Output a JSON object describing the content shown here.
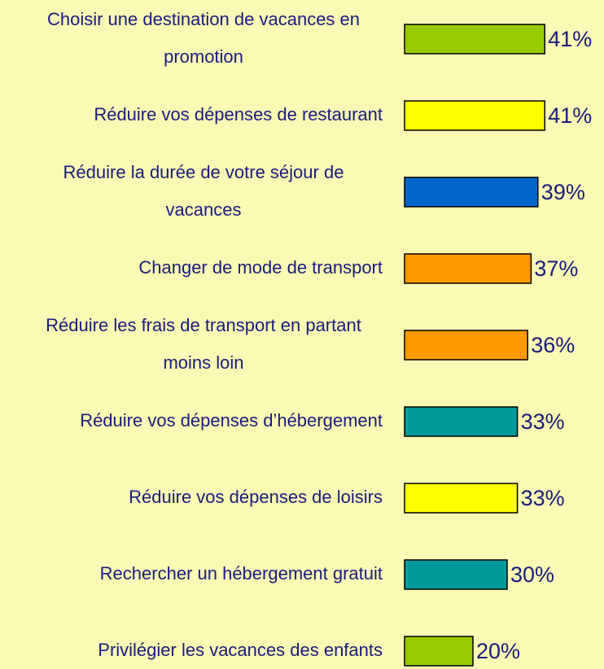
{
  "chart_data": {
    "type": "bar",
    "orientation": "horizontal",
    "categories": [
      "Choisir une destination de vacances en promotion",
      "Réduire vos dépenses de restaurant",
      "Réduire la durée de votre séjour de vacances",
      "Changer de mode de transport",
      "Réduire les frais de transport en partant moins loin",
      "Réduire vos dépenses d’hébergement",
      "Réduire vos dépenses de loisirs",
      "Rechercher un hébergement gratuit",
      "Privilégier les vacances des enfants"
    ],
    "values": [
      41,
      41,
      39,
      37,
      36,
      33,
      33,
      30,
      20
    ],
    "value_labels": [
      "41%",
      "41%",
      "39%",
      "37%",
      "36%",
      "33%",
      "33%",
      "30%",
      "20%"
    ],
    "colors": [
      "#99cc00",
      "#ffff00",
      "#0066cc",
      "#ff9900",
      "#ff9900",
      "#009999",
      "#ffff00",
      "#009999",
      "#99cc00"
    ]
  }
}
